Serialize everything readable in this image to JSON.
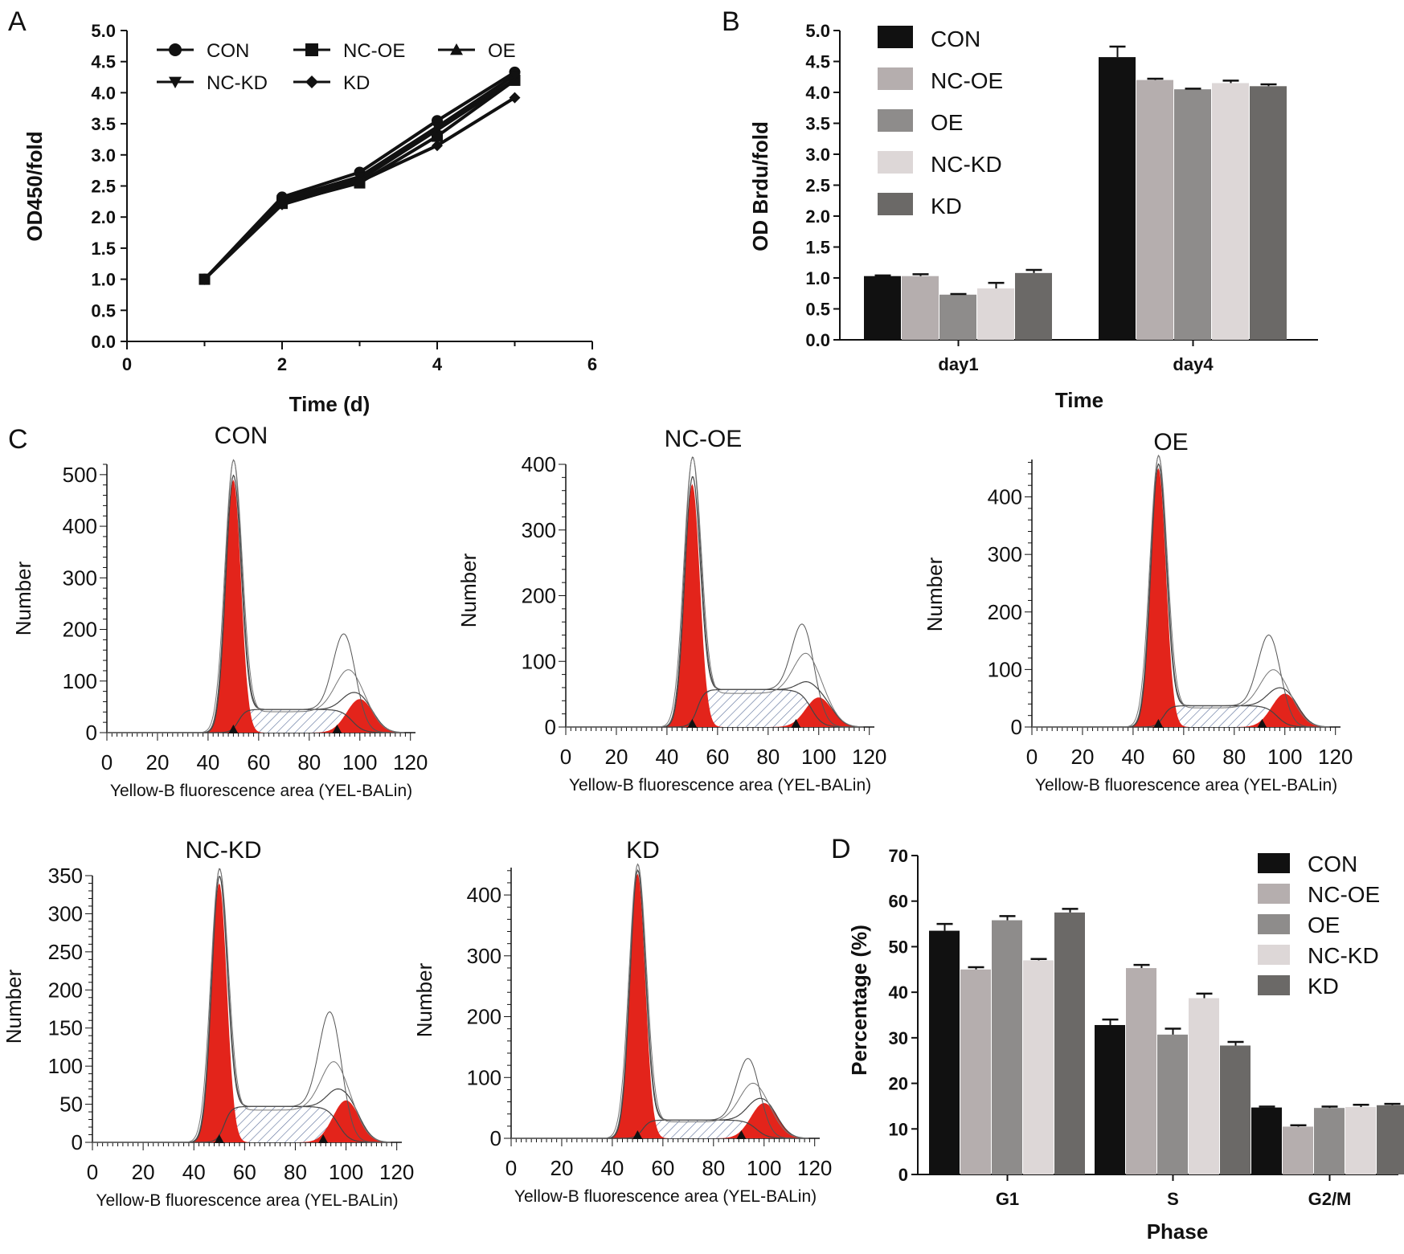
{
  "panel_labels": [
    "A",
    "B",
    "C",
    "D"
  ],
  "chart_data": [
    {
      "id": "A",
      "type": "line",
      "xlabel": "Time (d)",
      "ylabel": "OD450/fold",
      "xlim": [
        0,
        6
      ],
      "ylim": [
        0,
        5
      ],
      "xticks": [
        "0",
        "2",
        "4",
        "6"
      ],
      "yticks": [
        "0.0",
        "0.5",
        "1.0",
        "1.5",
        "2.0",
        "2.5",
        "3.0",
        "3.5",
        "4.0",
        "4.5",
        "5.0"
      ],
      "legend_position": "top-left",
      "series": [
        {
          "name": "CON",
          "marker": "circle",
          "x": [
            1,
            2,
            3,
            4,
            5
          ],
          "y": [
            1.0,
            2.32,
            2.72,
            3.55,
            4.33
          ]
        },
        {
          "name": "NC-OE",
          "marker": "square",
          "x": [
            1,
            2,
            3,
            4,
            5
          ],
          "y": [
            1.0,
            2.22,
            2.55,
            3.3,
            4.2
          ]
        },
        {
          "name": "OE",
          "marker": "triangle-up",
          "x": [
            1,
            2,
            3,
            4,
            5
          ],
          "y": [
            1.0,
            2.25,
            2.6,
            3.4,
            4.22
          ]
        },
        {
          "name": "NC-KD",
          "marker": "triangle-down",
          "x": [
            1,
            2,
            3,
            4,
            5
          ],
          "y": [
            1.0,
            2.28,
            2.65,
            3.45,
            4.28
          ]
        },
        {
          "name": "KD",
          "marker": "diamond",
          "x": [
            1,
            2,
            3,
            4,
            5
          ],
          "y": [
            1.0,
            2.2,
            2.57,
            3.15,
            3.92
          ]
        }
      ]
    },
    {
      "id": "B",
      "type": "bar",
      "xlabel": "Time",
      "ylabel": "OD Brdu/fold",
      "categories": [
        "day1",
        "day4"
      ],
      "ylim": [
        0,
        5
      ],
      "yticks": [
        "0.0",
        "0.5",
        "1.0",
        "1.5",
        "2.0",
        "2.5",
        "3.0",
        "3.5",
        "4.0",
        "4.5",
        "5.0"
      ],
      "legend_position": "top-left",
      "series": [
        {
          "name": "CON",
          "color": "#111111",
          "values": [
            1.03,
            4.57
          ],
          "errors": [
            0.01,
            0.17
          ]
        },
        {
          "name": "NC-OE",
          "color": "#b5aeae",
          "values": [
            1.03,
            4.2
          ],
          "errors": [
            0.03,
            0.02
          ]
        },
        {
          "name": "OE",
          "color": "#8e8c8b",
          "values": [
            0.73,
            4.05
          ],
          "errors": [
            0.01,
            0.01
          ]
        },
        {
          "name": "NC-KD",
          "color": "#ddd7d7",
          "values": [
            0.83,
            4.15
          ],
          "errors": [
            0.09,
            0.04
          ]
        },
        {
          "name": "KD",
          "color": "#6b6967",
          "values": [
            1.08,
            4.1
          ],
          "errors": [
            0.05,
            0.03
          ]
        }
      ]
    },
    {
      "id": "C",
      "type": "histogram",
      "xlabel": "Yellow-B fluorescence area (YEL-BALin)",
      "ylabel": "Number",
      "xticks": [
        "0",
        "20",
        "40",
        "60",
        "80",
        "100",
        "120"
      ],
      "fill_color": "#e3241b",
      "histograms": [
        {
          "title": "CON",
          "ymax": 520,
          "yticks": [
            0,
            100,
            200,
            300,
            400,
            500
          ],
          "g1_peak": 490,
          "g1_total": 520,
          "g2_peak": 65,
          "g2_total": 155,
          "g2_mid": 98,
          "s_level": 45
        },
        {
          "title": "NC-OE",
          "ymax": 400,
          "yticks": [
            0,
            100,
            200,
            300,
            400
          ],
          "g1_peak": 370,
          "g1_total": 400,
          "g2_peak": 45,
          "g2_total": 110,
          "g2_mid": 80,
          "s_level": 57
        },
        {
          "title": "OE",
          "ymax": 465,
          "yticks": [
            0,
            100,
            200,
            300,
            400
          ],
          "g1_peak": 450,
          "g1_total": 465,
          "g2_peak": 58,
          "g2_total": 130,
          "g2_mid": 80,
          "s_level": 37
        },
        {
          "title": "NC-KD",
          "ymax": 350,
          "yticks": [
            0,
            50,
            100,
            150,
            200,
            250,
            300,
            350
          ],
          "g1_peak": 340,
          "g1_total": 350,
          "g2_peak": 55,
          "g2_total": 133,
          "g2_mid": 80,
          "s_level": 47
        },
        {
          "title": "KD",
          "ymax": 445,
          "yticks": [
            0,
            100,
            200,
            300,
            400
          ],
          "g1_peak": 435,
          "g1_total": 445,
          "g2_peak": 58,
          "g2_total": 107,
          "g2_mid": 75,
          "s_level": 30
        }
      ]
    },
    {
      "id": "D",
      "type": "bar",
      "xlabel": "Phase",
      "ylabel": "Percentage (%)",
      "categories": [
        "G1",
        "S",
        "G2/M"
      ],
      "ylim": [
        0,
        70
      ],
      "yticks": [
        "0",
        "10",
        "20",
        "30",
        "40",
        "50",
        "60",
        "70"
      ],
      "legend_position": "top-right",
      "series": [
        {
          "name": "CON",
          "color": "#111111",
          "values": [
            53.5,
            32.8,
            14.7
          ],
          "errors": [
            1.5,
            1.2,
            0.2
          ]
        },
        {
          "name": "NC-OE",
          "color": "#b5aeae",
          "values": [
            45.0,
            45.3,
            10.5
          ],
          "errors": [
            0.5,
            0.7,
            0.3
          ]
        },
        {
          "name": "OE",
          "color": "#8e8c8b",
          "values": [
            55.8,
            30.7,
            14.6
          ],
          "errors": [
            0.9,
            1.3,
            0.3
          ]
        },
        {
          "name": "NC-KD",
          "color": "#ddd7d7",
          "values": [
            47.0,
            38.7,
            14.8
          ],
          "errors": [
            0.3,
            1.0,
            0.5
          ]
        },
        {
          "name": "KD",
          "color": "#6b6967",
          "values": [
            57.5,
            28.3,
            15.2
          ],
          "errors": [
            0.8,
            0.8,
            0.3
          ]
        }
      ]
    }
  ]
}
